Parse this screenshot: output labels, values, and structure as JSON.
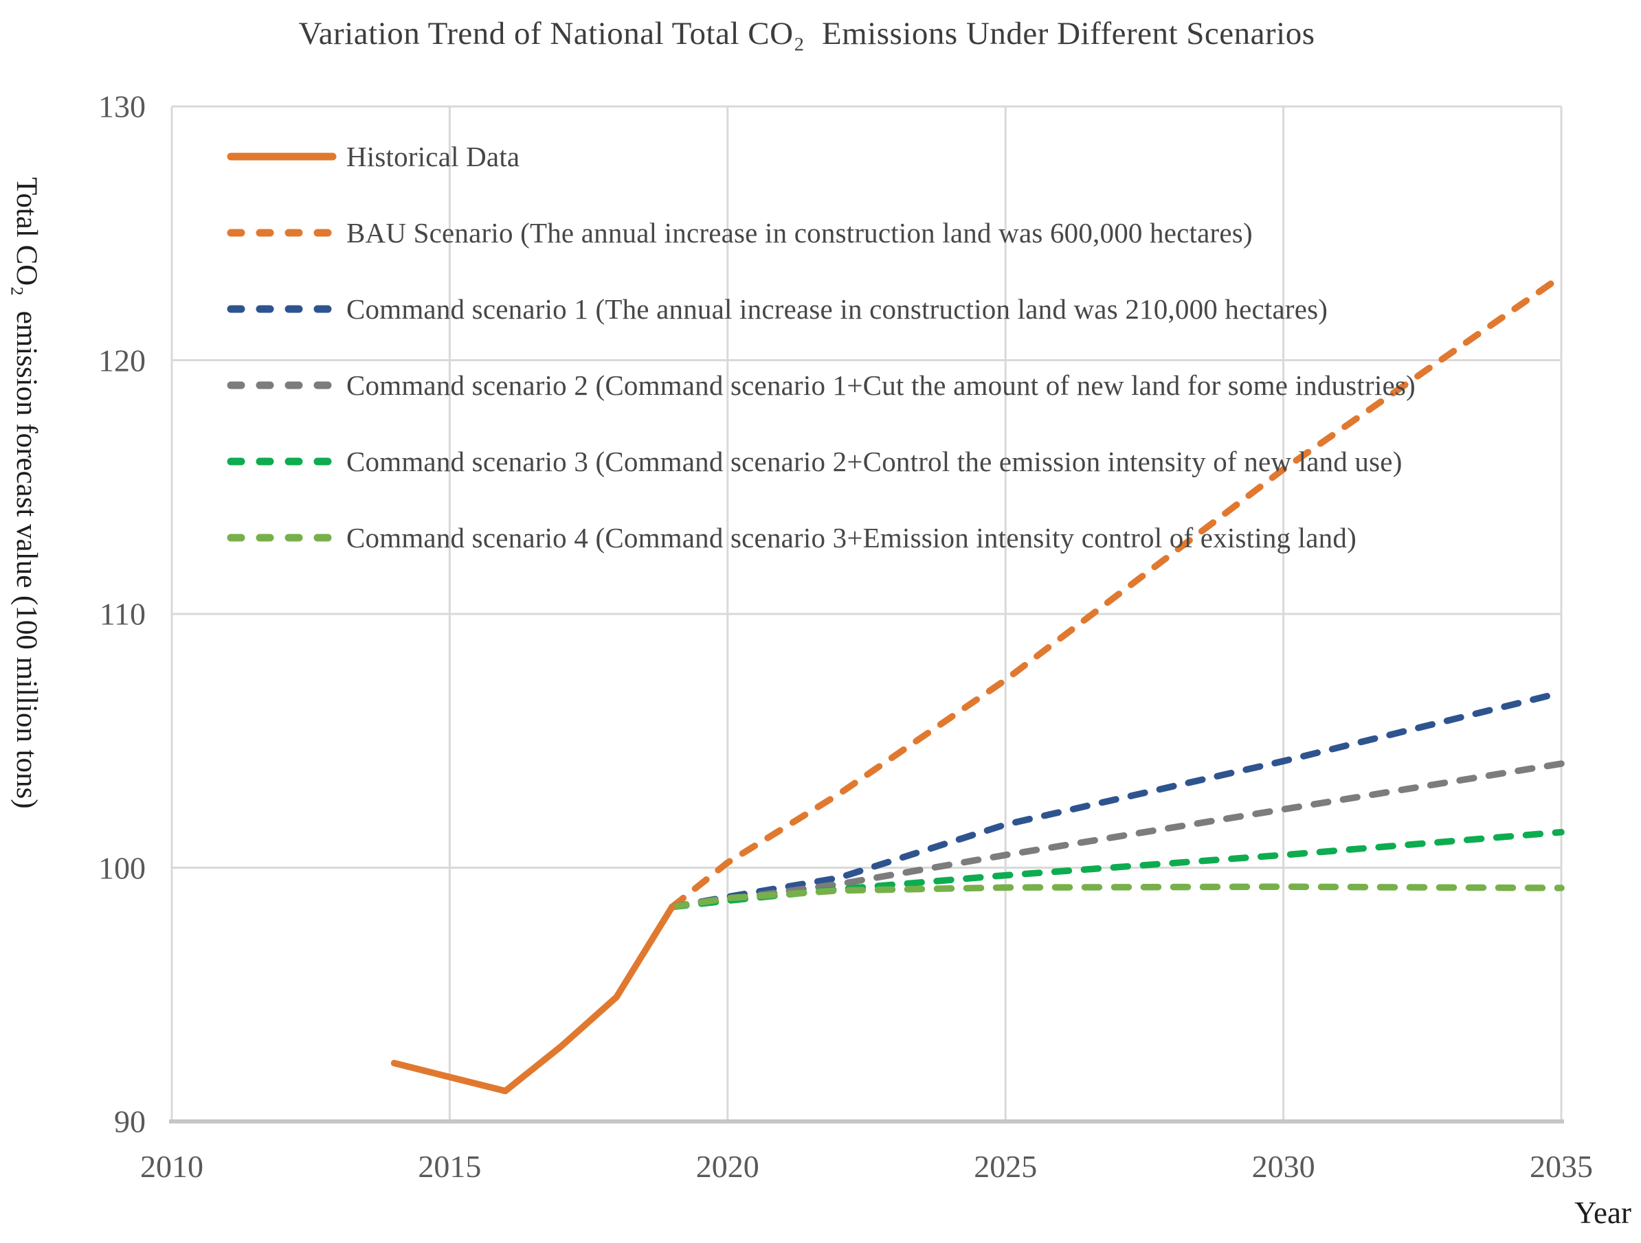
{
  "chart_data": {
    "type": "line",
    "title": "Variation Trend of National Total CO₂  Emissions Under Different Scenarios",
    "xlabel": "Year",
    "ylabel": "Total CO₂  emission forecast value (100 million tons)",
    "xlim": [
      2010,
      2035
    ],
    "ylim": [
      90,
      130
    ],
    "x_ticks": [
      "2010",
      "2015",
      "2020",
      "2025",
      "2030",
      "2035"
    ],
    "y_ticks": [
      "90",
      "100",
      "110",
      "120",
      "130"
    ],
    "grid": true,
    "legend_position": "inside-top-left",
    "colors": {
      "grid": "#D9D9D9",
      "axis": "#C6C6C6",
      "tick_text": "#595959",
      "legend_text": "#474747",
      "orange": "#E0792F",
      "blue": "#2E5490",
      "gray": "#7C7C7C",
      "green": "#0EAC50",
      "light_green": "#77B04A"
    },
    "series": [
      {
        "id": "bau",
        "name": "BAU Scenario (The annual increase in construction land was 600,000 hectares)",
        "color": "#E0792F",
        "style": "dashed",
        "points": [
          [
            2019,
            98.45
          ],
          [
            2020,
            100.2
          ],
          [
            2022,
            102.9
          ],
          [
            2025,
            107.4
          ],
          [
            2030,
            115.7
          ],
          [
            2035,
            123.3
          ]
        ]
      },
      {
        "id": "command-1",
        "name": "Command scenario 1 (The annual increase in construction land was 210,000 hectares)",
        "color": "#2E5490",
        "style": "dashed",
        "points": [
          [
            2019,
            98.45
          ],
          [
            2020,
            98.85
          ],
          [
            2022,
            99.6
          ],
          [
            2025,
            101.7
          ],
          [
            2030,
            104.2
          ],
          [
            2035,
            106.9
          ]
        ]
      },
      {
        "id": "command-2",
        "name": "Command scenario 2 (Command scenario 1+Cut the amount of new land for some industries)",
        "color": "#7C7C7C",
        "style": "dashed",
        "points": [
          [
            2019,
            98.45
          ],
          [
            2020,
            98.75
          ],
          [
            2022,
            99.35
          ],
          [
            2025,
            100.5
          ],
          [
            2030,
            102.3
          ],
          [
            2035,
            104.1
          ]
        ]
      },
      {
        "id": "command-3",
        "name": "Command scenario 3 (Command scenario 2+Control the emission intensity of new land use)",
        "color": "#0EAC50",
        "style": "dashed",
        "points": [
          [
            2019,
            98.45
          ],
          [
            2020,
            98.7
          ],
          [
            2022,
            99.15
          ],
          [
            2025,
            99.7
          ],
          [
            2030,
            100.5
          ],
          [
            2035,
            101.4
          ]
        ]
      },
      {
        "id": "command-4",
        "name": "Command scenario 4 (Command scenario 3+Emission intensity control of existing land)",
        "color": "#77B04A",
        "style": "dashed",
        "points": [
          [
            2019,
            98.45
          ],
          [
            2020,
            98.8
          ],
          [
            2022,
            99.1
          ],
          [
            2025,
            99.22
          ],
          [
            2030,
            99.25
          ],
          [
            2035,
            99.2
          ]
        ]
      },
      {
        "id": "historical",
        "name": "Historical Data",
        "color": "#E0792F",
        "style": "solid",
        "points": [
          [
            2014,
            92.3
          ],
          [
            2015,
            91.75
          ],
          [
            2016,
            91.2
          ],
          [
            2017,
            92.95
          ],
          [
            2018,
            94.9
          ],
          [
            2019,
            98.45
          ]
        ]
      }
    ],
    "legend_order": [
      "historical",
      "bau",
      "command-1",
      "command-2",
      "command-3",
      "command-4"
    ]
  }
}
